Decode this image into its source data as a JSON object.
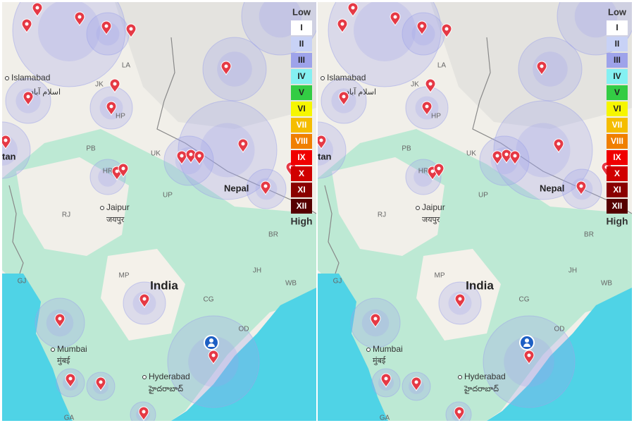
{
  "labels": [
    "Islamabad",
    "اسلام آباد",
    "tan",
    "JK",
    "LA",
    "HP",
    "PB",
    "UK",
    "HR",
    "UP",
    "Nepal",
    "RJ",
    "Jaipur",
    "जयपुर",
    "BR",
    "MP",
    "India",
    "JH",
    "WB",
    "GJ",
    "CG",
    "OD",
    "Mumbai",
    "मुंबई",
    "Hyderabad",
    "హైదరాబాద్",
    "GA"
  ],
  "legend": {
    "top": "Low",
    "bottom": "High",
    "levels": [
      "I",
      "II",
      "III",
      "IV",
      "V",
      "VI",
      "VII",
      "VIII",
      "IX",
      "X",
      "XI",
      "XII"
    ],
    "colors": [
      "#ffffff",
      "#c8d2f6",
      "#9ea3ea",
      "#84f0f2",
      "#33cc44",
      "#f6f600",
      "#f5bd00",
      "#f07f00",
      "#f00000",
      "#d00000",
      "#8a0000",
      "#560000"
    ]
  }
}
